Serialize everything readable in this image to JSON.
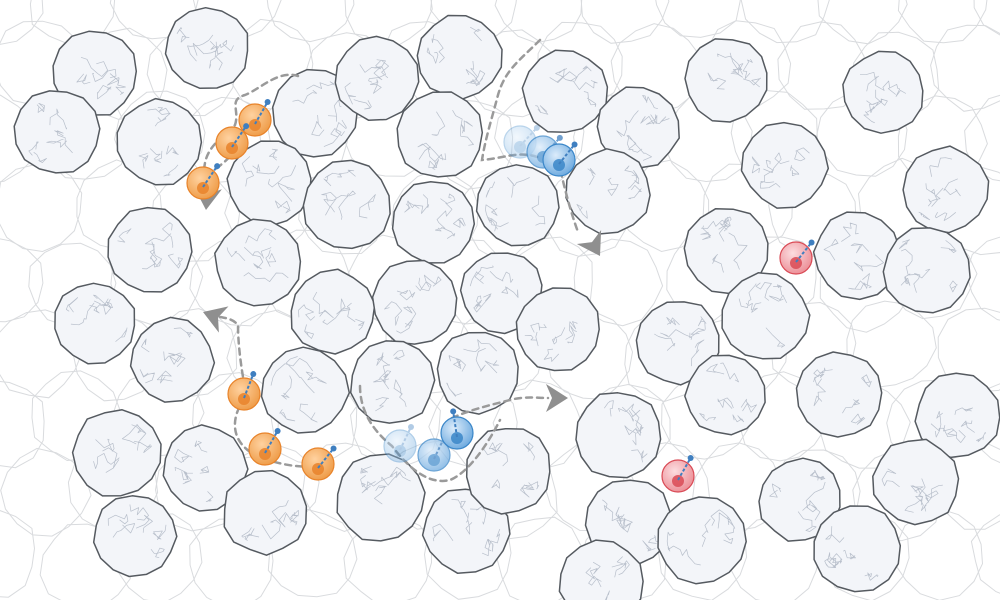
{
  "scene": {
    "description_free": true,
    "colors": {
      "background": "#ffffff",
      "cell_fill": "#f3f5f9",
      "cell_stroke": "#555a60",
      "cell_texture": "#a9b2bf",
      "ghost_stroke": "#d9dbde",
      "path_dash": "#9a9a9a",
      "direction_arrow": "#8f8f8f",
      "orange_agent": "#f0a050",
      "orange_core": "#e8832a",
      "blue_agent": "#7fb6e6",
      "blue_core": "#3a86c8",
      "red_agent": "#ee9aa0",
      "red_core": "#d94a55",
      "velocity_vector": "#3f7fc0"
    },
    "agent_groups": [
      {
        "name": "orange-group-upper",
        "color": "orange",
        "count": 3
      },
      {
        "name": "orange-group-lower",
        "color": "orange",
        "count": 3
      },
      {
        "name": "blue-group-upper",
        "color": "blue",
        "count": 3
      },
      {
        "name": "blue-group-lower",
        "color": "blue",
        "count": 3
      },
      {
        "name": "red-singles",
        "color": "red",
        "count": 2
      }
    ],
    "icons": [
      "direction-arrow-icon",
      "velocity-arrow-icon"
    ]
  }
}
